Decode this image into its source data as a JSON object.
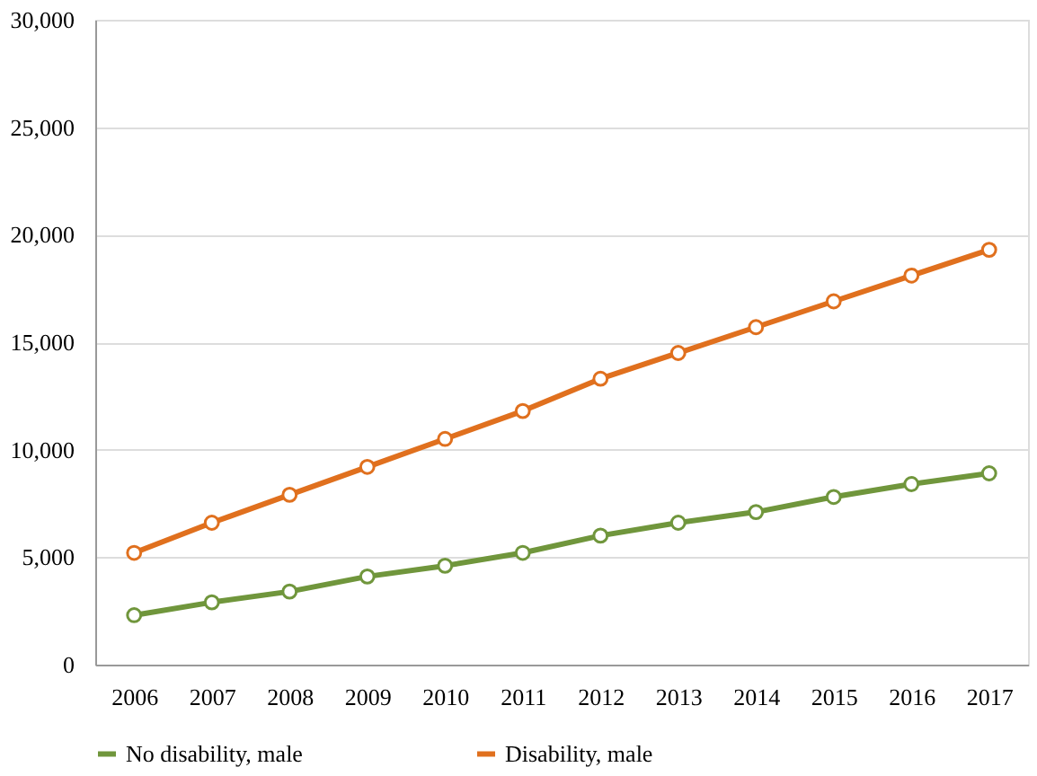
{
  "chart_data": {
    "type": "line",
    "categories": [
      "2006",
      "2007",
      "2008",
      "2009",
      "2010",
      "2011",
      "2012",
      "2013",
      "2014",
      "2015",
      "2016",
      "2017"
    ],
    "series": [
      {
        "name": "No disability, male",
        "color": "#70963c",
        "values": [
          2300,
          2900,
          3400,
          4100,
          4600,
          5200,
          6000,
          6600,
          7100,
          7800,
          8400,
          8900
        ]
      },
      {
        "name": "Disability, male",
        "color": "#e0701e",
        "values": [
          5200,
          6600,
          7900,
          9200,
          10500,
          11800,
          13300,
          14500,
          15700,
          16900,
          18100,
          19300
        ]
      }
    ],
    "ylim": [
      0,
      30000
    ],
    "yticks": [
      {
        "value": 0,
        "label": "0"
      },
      {
        "value": 5000,
        "label": "5,000"
      },
      {
        "value": 10000,
        "label": "10,000"
      },
      {
        "value": 15000,
        "label": "15,000"
      },
      {
        "value": 20000,
        "label": "20,000"
      },
      {
        "value": 25000,
        "label": "25,000"
      },
      {
        "value": 30000,
        "label": "30,000"
      }
    ],
    "grid": "y",
    "legend": "bottom",
    "marker": "circle",
    "line_style": "solid"
  }
}
